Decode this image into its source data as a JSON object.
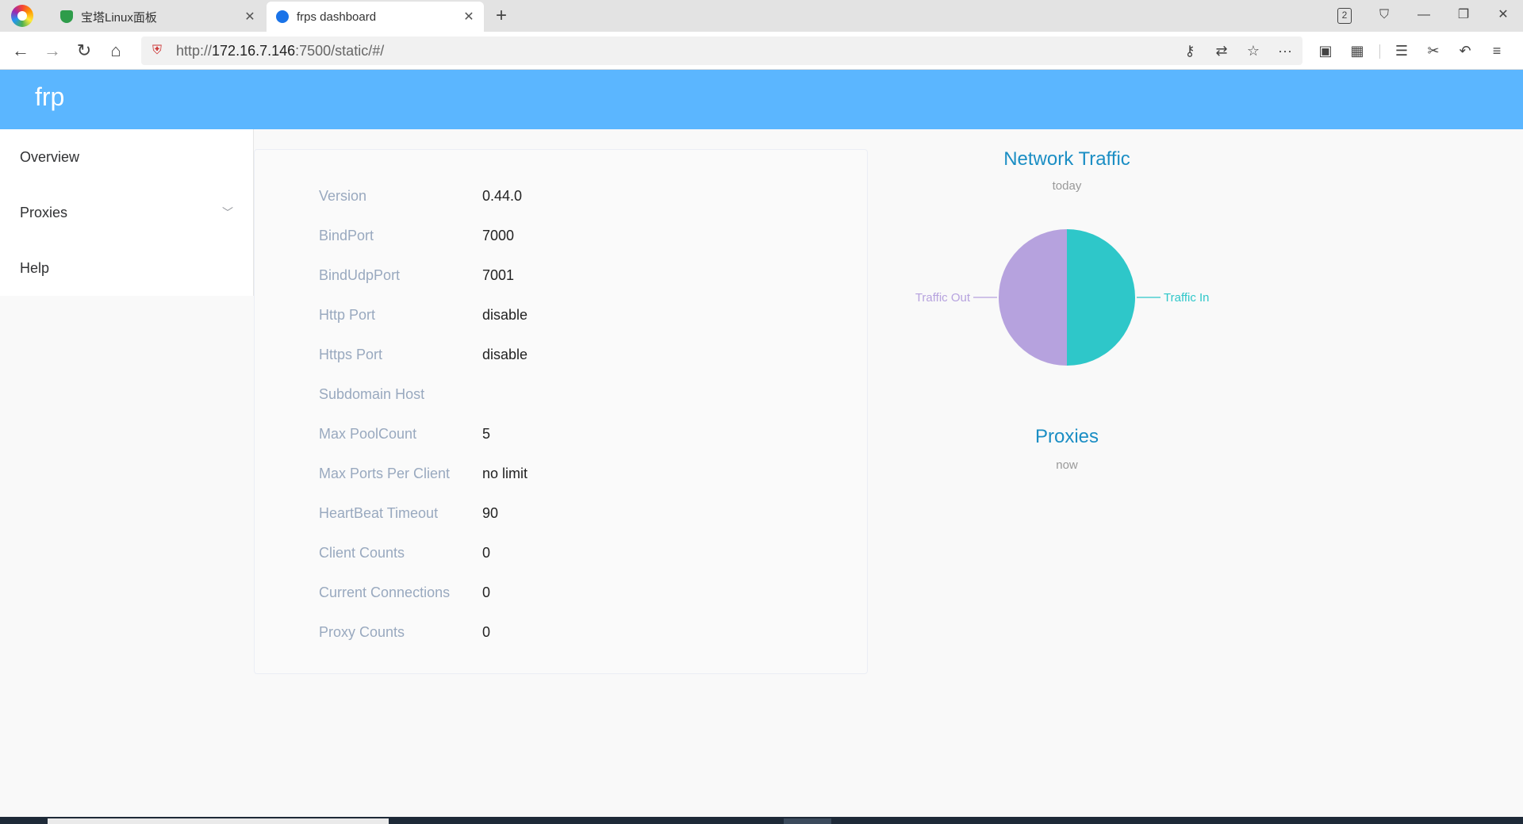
{
  "browser": {
    "tabs": [
      {
        "title": "宝塔Linux面板",
        "active": false
      },
      {
        "title": "frps dashboard",
        "active": true
      }
    ],
    "window_count": "2",
    "url_prefix": "http://",
    "url_host": "172.16.7.146",
    "url_rest": ":7500/static/#/"
  },
  "app": {
    "logo": "frp"
  },
  "sidebar": {
    "items": [
      {
        "label": "Overview"
      },
      {
        "label": "Proxies"
      },
      {
        "label": "Help"
      }
    ]
  },
  "server_info": [
    {
      "label": "Version",
      "value": "0.44.0"
    },
    {
      "label": "BindPort",
      "value": "7000"
    },
    {
      "label": "BindUdpPort",
      "value": "7001"
    },
    {
      "label": "Http Port",
      "value": "disable"
    },
    {
      "label": "Https Port",
      "value": "disable"
    },
    {
      "label": "Subdomain Host",
      "value": ""
    },
    {
      "label": "Max PoolCount",
      "value": "5"
    },
    {
      "label": "Max Ports Per Client",
      "value": "no limit"
    },
    {
      "label": "HeartBeat Timeout",
      "value": "90"
    },
    {
      "label": "Client Counts",
      "value": "0"
    },
    {
      "label": "Current Connections",
      "value": "0"
    },
    {
      "label": "Proxy Counts",
      "value": "0"
    }
  ],
  "traffic_chart": {
    "title": "Network Traffic",
    "subtitle": "today"
  },
  "proxies_chart": {
    "title": "Proxies",
    "subtitle": "now"
  },
  "chart_data": {
    "type": "pie",
    "title": "Network Traffic",
    "subtitle": "today",
    "categories": [
      "Traffic In",
      "Traffic Out"
    ],
    "values": [
      50,
      50
    ],
    "colors": [
      "#2ec7c9",
      "#b6a2de"
    ]
  },
  "colors": {
    "header": "#5bb6ff",
    "chart_title": "#1b8ec4",
    "label": "#99a9bf"
  }
}
